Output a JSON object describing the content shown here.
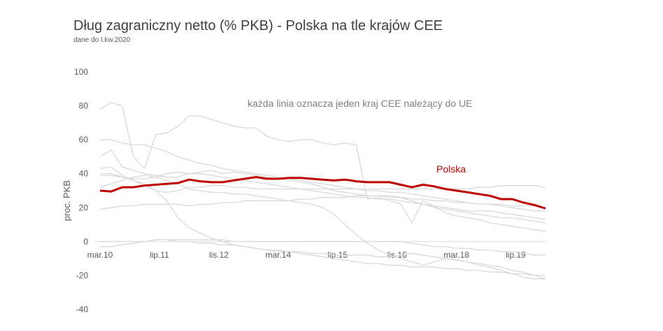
{
  "chart_data": {
    "type": "line",
    "title": "Dług zagraniczny netto (% PKB) - Polska na tle krajów CEE",
    "subtitle": "dane do I.kw.2020",
    "ylabel": "proc. PKB",
    "xlabel": "",
    "ylim": [
      -40,
      100
    ],
    "yticks": [
      100,
      80,
      60,
      40,
      20,
      0,
      -20,
      -40
    ],
    "xlim": [
      0,
      40
    ],
    "xticks": [
      {
        "label": "mar.10",
        "x": 0
      },
      {
        "label": "lip.11",
        "x": 5.33
      },
      {
        "label": "lis.12",
        "x": 10.67
      },
      {
        "label": "mar.14",
        "x": 16
      },
      {
        "label": "lip.15",
        "x": 21.33
      },
      {
        "label": "lis.16",
        "x": 26.67
      },
      {
        "label": "mar.18",
        "x": 32
      },
      {
        "label": "lip.19",
        "x": 37.33
      }
    ],
    "annotation": "każda linia oznacza jeden kraj CEE należący do UE",
    "highlight_color": "#c00000",
    "other_color": "#d9d9d9",
    "series": [
      {
        "name": "Polska",
        "highlight": true,
        "x": [
          0,
          1,
          2,
          3,
          4,
          5,
          6,
          7,
          8,
          9,
          10,
          11,
          12,
          13,
          14,
          15,
          16,
          17,
          18,
          19,
          20,
          21,
          22,
          23,
          24,
          25,
          26,
          27,
          28,
          29,
          30,
          31,
          32,
          33,
          34,
          35,
          36,
          37,
          38,
          39,
          40
        ],
        "y": [
          30,
          29.5,
          32,
          32,
          33,
          33.5,
          34,
          34.5,
          36.5,
          35.5,
          35,
          35,
          36,
          37,
          38,
          37,
          37,
          37.5,
          37.5,
          37,
          36.5,
          36,
          36.5,
          35.5,
          35,
          35,
          35,
          33.5,
          32,
          33.5,
          32.5,
          31,
          30,
          29,
          28,
          27,
          25,
          25,
          23,
          21.5,
          19.5
        ]
      },
      {
        "highlight": false,
        "x": [
          0,
          1,
          2,
          3,
          4,
          5,
          6,
          7,
          8,
          9,
          10,
          11,
          12,
          13,
          14,
          15,
          16,
          17,
          18,
          19,
          20,
          21,
          22,
          23,
          24,
          25,
          26,
          27,
          28,
          29,
          30,
          31,
          32,
          33,
          34,
          35,
          36,
          37,
          38,
          39,
          40
        ],
        "y": [
          78,
          82,
          80,
          50,
          43,
          63,
          64,
          68,
          74,
          74,
          72,
          70,
          68,
          67,
          67,
          62,
          60,
          59,
          60,
          60,
          58,
          57,
          58,
          57,
          25,
          26,
          24,
          22,
          11,
          24,
          21,
          17,
          15,
          14,
          13,
          11,
          10,
          9,
          8,
          7,
          6
        ]
      },
      {
        "highlight": false,
        "x": [
          0,
          1,
          2,
          3,
          4,
          5,
          6,
          7,
          8,
          9,
          10,
          11,
          12,
          13,
          14,
          15,
          16,
          17,
          18,
          19,
          20,
          21,
          22,
          23,
          24,
          25,
          26,
          27,
          28,
          29,
          30,
          31,
          32,
          33,
          34,
          35,
          36,
          37,
          38,
          39,
          40
        ],
        "y": [
          60,
          60,
          58,
          57,
          57,
          55,
          53,
          50,
          48,
          46,
          45,
          43,
          42,
          41,
          40,
          39,
          38,
          37,
          36,
          35,
          34,
          33,
          32,
          31,
          30,
          30,
          29,
          29,
          28,
          27,
          26,
          25,
          24,
          23,
          22,
          22,
          21,
          20,
          19,
          18,
          18
        ]
      },
      {
        "highlight": false,
        "x": [
          0,
          1,
          2,
          3,
          4,
          5,
          6,
          7,
          8,
          9,
          10,
          11,
          12,
          13,
          14,
          15,
          16,
          17,
          18,
          19,
          20,
          21,
          22,
          23,
          24,
          25,
          26,
          27,
          28,
          29,
          30,
          31,
          32,
          33,
          34,
          35,
          36,
          37,
          38,
          39,
          40
        ],
        "y": [
          50,
          54,
          44,
          42,
          40,
          39,
          38,
          38,
          40,
          41,
          42,
          40,
          41,
          40,
          39,
          38,
          37,
          36,
          35,
          34,
          32,
          30,
          29,
          28,
          27,
          27,
          26,
          26,
          25,
          25,
          24,
          24,
          23,
          23,
          22,
          22,
          22,
          21,
          21,
          21,
          20
        ]
      },
      {
        "highlight": false,
        "x": [
          0,
          1,
          2,
          3,
          4,
          5,
          6,
          7,
          8,
          9,
          10,
          11,
          12,
          13,
          14,
          15,
          16,
          17,
          18,
          19,
          20,
          21,
          22,
          23,
          24,
          25,
          26,
          27,
          28,
          29,
          30,
          31,
          32,
          33,
          34,
          35,
          36,
          37,
          38,
          39,
          40
        ],
        "y": [
          43,
          44,
          39,
          36,
          33,
          30,
          29,
          30,
          32,
          32,
          33,
          33,
          32,
          32,
          31,
          31,
          31,
          31,
          31,
          31,
          31,
          31,
          31,
          31,
          31,
          31,
          31,
          31,
          31,
          31,
          31,
          31,
          31,
          31,
          32,
          32,
          33,
          33,
          33,
          33,
          32
        ]
      },
      {
        "highlight": false,
        "x": [
          0,
          1,
          2,
          3,
          4,
          5,
          6,
          7,
          8,
          9,
          10,
          11,
          12,
          13,
          14,
          15,
          16,
          17,
          18,
          19,
          20,
          21,
          22,
          23,
          24,
          25,
          26,
          27,
          28,
          29,
          30,
          31,
          32,
          33,
          34,
          35,
          36,
          37,
          38,
          39,
          40
        ],
        "y": [
          39,
          39,
          38,
          37,
          37,
          38,
          40,
          41,
          40,
          40,
          39,
          38,
          37,
          36,
          35,
          34,
          33,
          32,
          31,
          30,
          29,
          28,
          27,
          26,
          26,
          25,
          25,
          24,
          23,
          22,
          20,
          19,
          18,
          17,
          16,
          15,
          14,
          14,
          13,
          12,
          11
        ]
      },
      {
        "highlight": false,
        "x": [
          0,
          1,
          2,
          3,
          4,
          5,
          6,
          7,
          8,
          9,
          10,
          11,
          12,
          13,
          14,
          15,
          16,
          17,
          18,
          19,
          20,
          21,
          22,
          23,
          24,
          25,
          26,
          27,
          28,
          29,
          30,
          31,
          32,
          33,
          34,
          35,
          36,
          37,
          38,
          39,
          40
        ],
        "y": [
          40,
          40,
          38,
          36,
          34,
          30,
          24,
          14,
          8,
          5,
          2,
          0,
          -2,
          -3,
          -4,
          -5,
          -6,
          -6,
          -7,
          -8,
          -9,
          -10,
          -11,
          -12,
          -13,
          -13,
          -14,
          -14,
          -15,
          -15,
          -15,
          -16,
          -16,
          -17,
          -17,
          -18,
          -18,
          -19,
          -19,
          -20,
          -20
        ]
      },
      {
        "highlight": false,
        "x": [
          0,
          1,
          2,
          3,
          4,
          5,
          6,
          7,
          8,
          9,
          10,
          11,
          12,
          13,
          14,
          15,
          16,
          17,
          18,
          19,
          20,
          21,
          22,
          23,
          24,
          25,
          26,
          27,
          28,
          29,
          30,
          31,
          32,
          33,
          34,
          35,
          36,
          37,
          38,
          39,
          40
        ],
        "y": [
          32,
          34,
          36,
          38,
          39,
          38,
          36,
          34,
          31,
          30,
          29,
          29,
          28,
          28,
          27,
          26,
          25,
          24,
          23,
          22,
          20,
          16,
          10,
          4,
          -1,
          -5,
          -8,
          -10,
          -12,
          -14,
          -12,
          -10,
          -11,
          -12,
          -13,
          -14,
          -15,
          -17,
          -18,
          -20,
          -22
        ]
      },
      {
        "highlight": false,
        "x": [
          0,
          1,
          2,
          3,
          4,
          5,
          6,
          7,
          8,
          9,
          10,
          11,
          12,
          13,
          14,
          15,
          16,
          17,
          18,
          19,
          20,
          21,
          22,
          23,
          24,
          25,
          26,
          27,
          28,
          29,
          30,
          31,
          32,
          33,
          34,
          35,
          36,
          37,
          38,
          39,
          40
        ],
        "y": [
          19,
          20,
          21,
          21,
          22,
          22,
          22,
          22,
          21,
          22,
          22,
          23,
          23,
          24,
          24,
          24,
          24,
          24,
          25,
          25,
          26,
          26,
          26,
          27,
          27,
          27,
          27,
          26,
          24,
          22,
          21,
          20,
          19,
          18,
          18,
          18,
          17,
          16,
          15,
          14,
          13
        ]
      },
      {
        "highlight": false,
        "x": [
          0,
          1,
          2,
          3,
          4,
          5,
          6,
          7,
          8,
          9,
          10,
          11,
          12,
          13,
          14,
          15,
          16,
          17,
          18,
          19,
          20,
          21,
          22,
          23,
          24,
          25,
          26,
          27,
          28,
          29,
          30,
          31,
          32,
          33,
          34,
          35,
          36,
          37,
          38,
          39,
          40
        ],
        "y": [
          0,
          0,
          0,
          0,
          0,
          1,
          1,
          1,
          1,
          1,
          1,
          1,
          0,
          0,
          0,
          0,
          0,
          0,
          0,
          0,
          0,
          0,
          0,
          0,
          0,
          0,
          0,
          0,
          -1,
          -2,
          -3,
          -3,
          -4,
          -4,
          -5,
          -5,
          -6,
          -6,
          -7,
          -8,
          -8
        ]
      },
      {
        "highlight": false,
        "x": [
          0,
          1,
          2,
          3,
          4,
          5,
          6,
          7,
          8,
          9,
          10,
          11,
          12,
          13,
          14,
          15,
          16,
          17,
          18,
          19,
          20,
          21,
          22,
          23,
          24,
          25,
          26,
          27,
          28,
          29,
          30,
          31,
          32,
          33,
          34,
          35,
          36,
          37,
          38,
          39,
          40
        ],
        "y": [
          -3,
          -3,
          -2,
          -1,
          0,
          1,
          1,
          0,
          0,
          -1,
          -1,
          -2,
          -2,
          -3,
          -4,
          -5,
          -5,
          -6,
          -6,
          -7,
          -7,
          -8,
          -8,
          -8,
          -8,
          -9,
          -9,
          -8,
          -7,
          -8,
          -9,
          -10,
          -11,
          -12,
          -14,
          -15,
          -17,
          -19,
          -21,
          -22,
          -22
        ]
      }
    ]
  }
}
